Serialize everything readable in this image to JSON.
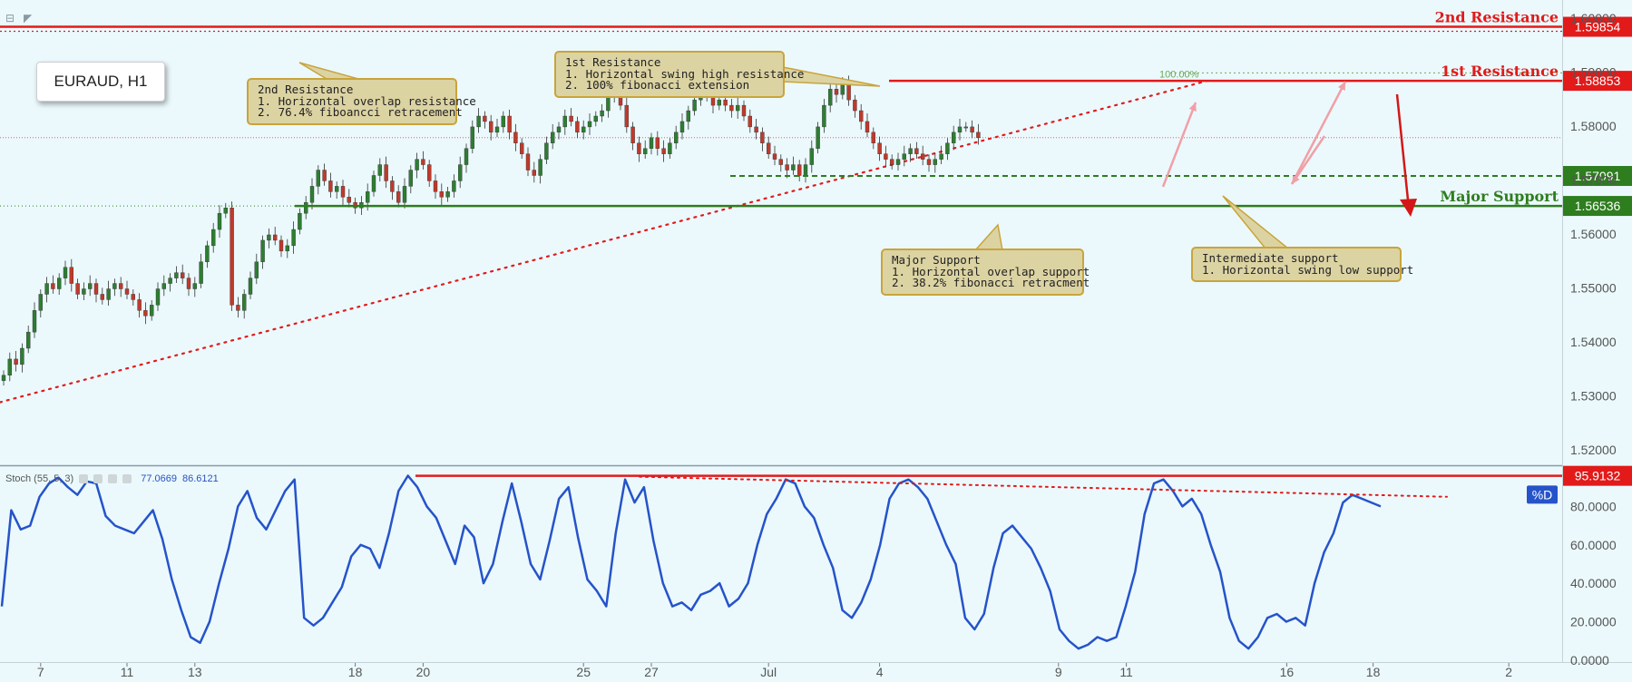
{
  "symbol": "EURAUD, H1",
  "levels": [
    {
      "id": "second-resistance",
      "label": "2nd Resistance",
      "value": "1.59854",
      "price": 1.59854,
      "color": "#e21a1a",
      "style": "solid"
    },
    {
      "id": "first-resistance",
      "label": "1st Resistance",
      "value": "1.58853",
      "price": 1.58853,
      "color": "#e21a1a",
      "style": "solid"
    },
    {
      "id": "intermediate-support",
      "label": "",
      "value": "1.57091",
      "price": 1.57091,
      "color": "#2e7d1f",
      "style": "dashed"
    },
    {
      "id": "major-support",
      "label": "Major Support",
      "value": "1.56536",
      "price": 1.56536,
      "color": "#2e7d1f",
      "style": "solid"
    }
  ],
  "fib_label": "100.00%",
  "callouts": {
    "second_resistance": {
      "title": "2nd Resistance",
      "line1": "1. Horizontal overlap resistance",
      "line2": "2. 76.4% fiboancci retracement"
    },
    "first_resistance": {
      "title": "1st Resistance",
      "line1": "1. Horizontal swing high resistance",
      "line2": "2. 100% fibonacci extension"
    },
    "major_support": {
      "title": "Major Support",
      "line1": "1. Horizontal overlap support",
      "line2": "2. 38.2% fibonacci retracment"
    },
    "intermediate_support": {
      "title": "Intermediate support",
      "line1": "1. Horizontal swing low support"
    }
  },
  "stoch": {
    "title": "Stoch (55, 5, 3)",
    "value_k": "77.0669",
    "value_d": "86.6121",
    "level_value": "95.9132",
    "d_label": "%D"
  },
  "chart_data": [
    {
      "type": "candlestick",
      "title": "EURAUD, H1",
      "ylim": [
        1.5175,
        1.6035
      ],
      "y_ticks": [
        "1.52000",
        "1.53000",
        "1.54000",
        "1.55000",
        "1.56000",
        "1.57000",
        "1.58000",
        "1.59000",
        "1.60000"
      ],
      "x_ticks": [
        "7",
        "11",
        "13",
        "18",
        "20",
        "25",
        "27",
        "Jul",
        "4",
        "9",
        "11",
        "16",
        "18",
        "2"
      ],
      "x_tick_index": [
        6,
        20,
        31,
        57,
        68,
        94,
        105,
        124,
        142,
        171,
        182,
        208,
        222,
        244
      ],
      "series": [
        {
          "name": "Close",
          "values": [
            1.534,
            1.537,
            1.536,
            1.539,
            1.542,
            1.546,
            1.549,
            1.551,
            1.55,
            1.552,
            1.554,
            1.551,
            1.549,
            1.55,
            1.551,
            1.549,
            1.548,
            1.55,
            1.551,
            1.55,
            1.549,
            1.548,
            1.546,
            1.545,
            1.547,
            1.55,
            1.551,
            1.552,
            1.553,
            1.552,
            1.55,
            1.551,
            1.555,
            1.558,
            1.561,
            1.564,
            1.565,
            1.547,
            1.546,
            1.549,
            1.552,
            1.555,
            1.559,
            1.56,
            1.559,
            1.557,
            1.558,
            1.561,
            1.564,
            1.566,
            1.569,
            1.572,
            1.57,
            1.568,
            1.569,
            1.567,
            1.566,
            1.565,
            1.566,
            1.568,
            1.571,
            1.573,
            1.57,
            1.568,
            1.566,
            1.569,
            1.572,
            1.574,
            1.573,
            1.57,
            1.568,
            1.567,
            1.568,
            1.57,
            1.573,
            1.576,
            1.58,
            1.582,
            1.581,
            1.579,
            1.58,
            1.582,
            1.579,
            1.577,
            1.575,
            1.572,
            1.571,
            1.574,
            1.577,
            1.579,
            1.58,
            1.582,
            1.581,
            1.579,
            1.58,
            1.581,
            1.582,
            1.583,
            1.586,
            1.587,
            1.584,
            1.58,
            1.577,
            1.575,
            1.576,
            1.578,
            1.576,
            1.575,
            1.577,
            1.579,
            1.581,
            1.583,
            1.585,
            1.587,
            1.586,
            1.584,
            1.585,
            1.584,
            1.583,
            1.584,
            1.582,
            1.58,
            1.579,
            1.577,
            1.575,
            1.574,
            1.573,
            1.572,
            1.573,
            1.571,
            1.573,
            1.576,
            1.58,
            1.584,
            1.587,
            1.586,
            1.588,
            1.585,
            1.583,
            1.581,
            1.579,
            1.577,
            1.575,
            1.574,
            1.573,
            1.574,
            1.575,
            1.576,
            1.575,
            1.574,
            1.573,
            1.574,
            1.575,
            1.577,
            1.579,
            1.58,
            1.58,
            1.579,
            1.578
          ]
        }
      ],
      "annotations": [
        "2nd Resistance",
        "1st Resistance",
        "Major Support",
        "100.00%"
      ]
    },
    {
      "type": "line",
      "title": "Stoch (55, 5, 3)",
      "ylim": [
        -1,
        100
      ],
      "y_ticks": [
        "0.0000",
        "20.0000",
        "40.0000",
        "60.0000",
        "80.0000"
      ],
      "series": [
        {
          "name": "%D",
          "values": [
            28,
            78,
            68,
            70,
            85,
            92,
            95,
            90,
            86,
            93,
            92,
            75,
            70,
            68,
            66,
            72,
            78,
            63,
            42,
            26,
            12,
            9,
            20,
            40,
            58,
            80,
            88,
            74,
            68,
            78,
            88,
            94,
            22,
            18,
            22,
            30,
            38,
            54,
            60,
            58,
            48,
            66,
            88,
            96,
            90,
            80,
            74,
            62,
            50,
            70,
            64,
            40,
            50,
            72,
            92,
            72,
            50,
            42,
            62,
            84,
            90,
            64,
            42,
            36,
            28,
            66,
            94,
            82,
            90,
            62,
            40,
            28,
            30,
            26,
            34,
            36,
            40,
            28,
            32,
            40,
            60,
            76,
            84,
            94,
            92,
            80,
            74,
            60,
            48,
            26,
            22,
            30,
            42,
            60,
            84,
            92,
            94,
            90,
            84,
            72,
            60,
            50,
            22,
            16,
            24,
            48,
            66,
            70,
            64,
            58,
            48,
            36,
            16,
            10,
            6,
            8,
            12,
            10,
            12,
            28,
            46,
            76,
            92,
            94,
            88,
            80,
            84,
            76,
            60,
            46,
            22,
            10,
            6,
            12,
            22,
            24,
            20,
            22,
            18,
            40,
            56,
            66,
            82,
            86,
            84,
            82,
            80
          ]
        }
      ],
      "annotations": [
        "95.9132",
        "%D"
      ]
    }
  ]
}
